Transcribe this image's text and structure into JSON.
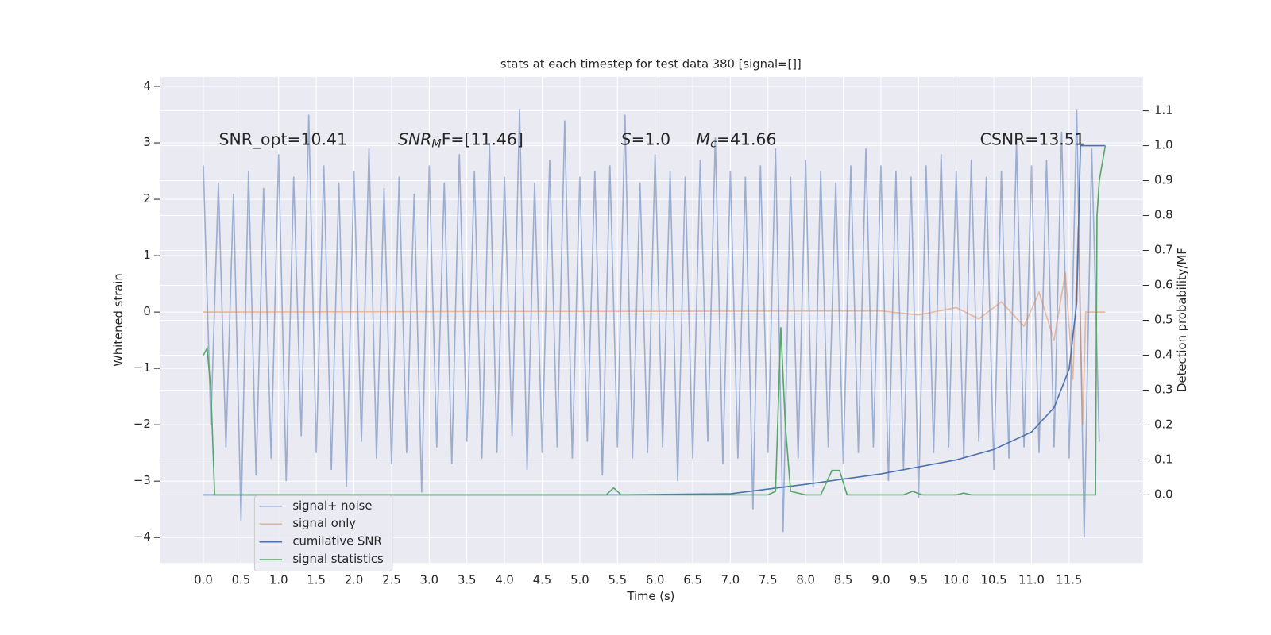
{
  "chart_data": {
    "type": "line",
    "title": "stats at each timestep for test data 380 [signal=[]]",
    "x_label": "Time (s)",
    "y_label": "Whitened strain",
    "y2_label": "Detection probability/MF",
    "xlim": [
      -0.58,
      12.48
    ],
    "ylim": [
      -4.45,
      4.17
    ],
    "y2lim": [
      -0.195,
      1.197
    ],
    "grid": true,
    "legend": "lower left",
    "xticks": [
      {
        "value": 0,
        "label": "0.0"
      },
      {
        "value": 0.5,
        "label": "0.5"
      },
      {
        "value": 1,
        "label": "1.0"
      },
      {
        "value": 1.5,
        "label": "1.5"
      },
      {
        "value": 2,
        "label": "2.0"
      },
      {
        "value": 2.5,
        "label": "2.5"
      },
      {
        "value": 3,
        "label": "3.0"
      },
      {
        "value": 3.5,
        "label": "3.5"
      },
      {
        "value": 4,
        "label": "4.0"
      },
      {
        "value": 4.5,
        "label": "4.5"
      },
      {
        "value": 5,
        "label": "5.0"
      },
      {
        "value": 5.5,
        "label": "5.5"
      },
      {
        "value": 6,
        "label": "6.0"
      },
      {
        "value": 6.5,
        "label": "6.5"
      },
      {
        "value": 7,
        "label": "7.0"
      },
      {
        "value": 7.5,
        "label": "7.5"
      },
      {
        "value": 8,
        "label": "8.0"
      },
      {
        "value": 8.5,
        "label": "8.5"
      },
      {
        "value": 9,
        "label": "9.0"
      },
      {
        "value": 9.5,
        "label": "9.5"
      },
      {
        "value": 10,
        "label": "10.0"
      },
      {
        "value": 10.5,
        "label": "10.5"
      },
      {
        "value": 11,
        "label": "11.0"
      },
      {
        "value": 11.5,
        "label": "11.5"
      }
    ],
    "yticks": [
      {
        "value": -4,
        "label": "−4"
      },
      {
        "value": -3,
        "label": "−3"
      },
      {
        "value": -2,
        "label": "−2"
      },
      {
        "value": -1,
        "label": "−1"
      },
      0,
      1,
      2,
      3,
      4
    ],
    "y2ticks": [
      {
        "value": 0,
        "label": "0.0"
      },
      {
        "value": 0.1,
        "label": "0.1"
      },
      {
        "value": 0.2,
        "label": "0.2"
      },
      {
        "value": 0.3,
        "label": "0.3"
      },
      {
        "value": 0.4,
        "label": "0.4"
      },
      {
        "value": 0.5,
        "label": "0.5"
      },
      {
        "value": 0.6,
        "label": "0.6"
      },
      {
        "value": 0.7,
        "label": "0.7"
      },
      {
        "value": 0.8,
        "label": "0.8"
      },
      {
        "value": 0.9,
        "label": "0.9"
      },
      {
        "value": 1,
        "label": "1.0"
      },
      {
        "value": 1.1,
        "label": "1.1"
      }
    ],
    "annotations": [
      {
        "text": "SNR_opt=10.41"
      },
      {
        "math": "SNR",
        "sub": "M",
        "text": "F=[11.46]"
      },
      {
        "math": "S",
        "text": "=1.0"
      },
      {
        "math": "M",
        "sub": "c",
        "text": "=41.66"
      },
      {
        "text": "CSNR=13.51"
      }
    ],
    "series": [
      {
        "name": "signal+ noise",
        "color": "#4c72b0",
        "opacity": 0.5,
        "axis": "y",
        "x": [
          0,
          0.1,
          0.2,
          0.3,
          0.4,
          0.5,
          0.6,
          0.7,
          0.8,
          0.9,
          1,
          1.1,
          1.2,
          1.3,
          1.4,
          1.5,
          1.6,
          1.7,
          1.8,
          1.9,
          2,
          2.1,
          2.2,
          2.3,
          2.4,
          2.5,
          2.6,
          2.7,
          2.8,
          2.9,
          3,
          3.1,
          3.2,
          3.3,
          3.4,
          3.5,
          3.6,
          3.7,
          3.8,
          3.9,
          4,
          4.1,
          4.2,
          4.3,
          4.4,
          4.5,
          4.6,
          4.7,
          4.8,
          4.9,
          5,
          5.1,
          5.2,
          5.3,
          5.4,
          5.5,
          5.6,
          5.7,
          5.8,
          5.9,
          6,
          6.1,
          6.2,
          6.3,
          6.4,
          6.5,
          6.6,
          6.7,
          6.8,
          6.9,
          7,
          7.1,
          7.2,
          7.3,
          7.4,
          7.5,
          7.6,
          7.7,
          7.8,
          7.9,
          8,
          8.1,
          8.2,
          8.3,
          8.4,
          8.5,
          8.6,
          8.7,
          8.8,
          8.9,
          9,
          9.1,
          9.2,
          9.3,
          9.4,
          9.5,
          9.6,
          9.7,
          9.8,
          9.9,
          10,
          10.1,
          10.2,
          10.3,
          10.4,
          10.5,
          10.6,
          10.7,
          10.8,
          10.9,
          11,
          11.1,
          11.2,
          11.3,
          11.4,
          11.5,
          11.6,
          11.7,
          11.8,
          11.9
        ],
        "values": [
          2.6,
          -2.0,
          2.3,
          -2.4,
          2.1,
          -3.7,
          2.5,
          -2.9,
          2.2,
          -2.6,
          2.8,
          -3.0,
          2.4,
          -2.2,
          3.5,
          -2.5,
          2.6,
          -2.8,
          2.3,
          -3.1,
          2.5,
          -2.3,
          2.9,
          -2.6,
          2.2,
          -2.7,
          2.4,
          -2.5,
          2.1,
          -3.2,
          2.6,
          -2.4,
          2.3,
          -2.7,
          2.8,
          -2.3,
          2.5,
          -2.6,
          3.0,
          -2.5,
          2.4,
          -2.2,
          3.6,
          -2.8,
          2.3,
          -2.5,
          2.7,
          -2.4,
          3.4,
          -2.6,
          2.4,
          -2.3,
          2.5,
          -2.9,
          2.6,
          -2.4,
          3.5,
          -2.6,
          2.3,
          -2.5,
          2.8,
          -2.4,
          2.5,
          -3.0,
          2.4,
          -2.6,
          2.7,
          -2.3,
          3.1,
          -2.7,
          2.5,
          -2.6,
          2.4,
          -3.5,
          2.6,
          -2.5,
          2.9,
          -3.9,
          2.4,
          -2.6,
          2.7,
          -3.1,
          2.5,
          -2.4,
          2.3,
          -2.7,
          2.6,
          -2.5,
          2.9,
          -2.4,
          2.6,
          -3.0,
          2.5,
          -2.8,
          2.4,
          -3.3,
          2.6,
          -2.5,
          2.8,
          -2.4,
          2.5,
          -2.6,
          2.7,
          -2.3,
          2.4,
          -2.8,
          2.5,
          -2.6,
          3.0,
          -2.4,
          2.6,
          -2.5,
          2.7,
          -2.4,
          3.2,
          -2.6,
          3.6,
          -4.0,
          2.9,
          -2.3
        ]
      },
      {
        "name": "signal only",
        "color": "#dd8452",
        "opacity": 0.5,
        "axis": "y",
        "x": [
          0,
          9.0,
          9.5,
          10.0,
          10.3,
          10.6,
          10.9,
          11.1,
          11.3,
          11.45,
          11.55,
          11.62,
          11.68,
          11.72,
          11.98
        ],
        "values": [
          0,
          0.02,
          -0.05,
          0.08,
          -0.12,
          0.18,
          -0.25,
          0.35,
          -0.5,
          0.7,
          -1.2,
          1.5,
          -2.0,
          0,
          0
        ]
      },
      {
        "name": "cumilative SNR",
        "color": "#4c72b0",
        "opacity": 1,
        "axis": "y2",
        "x": [
          0,
          5.5,
          7.0,
          8.0,
          9.0,
          10.0,
          10.5,
          11.0,
          11.3,
          11.5,
          11.6,
          11.65,
          11.98
        ],
        "values": [
          0,
          0,
          0.003,
          0.03,
          0.06,
          0.1,
          0.13,
          0.18,
          0.25,
          0.36,
          0.55,
          1.0,
          1.0
        ]
      },
      {
        "name": "signal statistics",
        "color": "#55a868",
        "opacity": 1,
        "axis": "y2",
        "x": [
          0,
          0.05,
          0.1,
          0.15,
          0.2,
          0.3,
          5.35,
          5.45,
          5.55,
          5.6,
          7.5,
          7.6,
          7.67,
          7.73,
          7.8,
          8.0,
          8.2,
          8.35,
          8.45,
          8.55,
          9.3,
          9.42,
          9.55,
          10.0,
          10.1,
          10.2,
          11.85,
          11.87,
          11.9,
          11.98
        ],
        "values": [
          0.4,
          0.42,
          0.3,
          0,
          0,
          0,
          0,
          0.02,
          0,
          0,
          0,
          0.01,
          0.48,
          0.2,
          0.01,
          0,
          0,
          0.07,
          0.07,
          0,
          0,
          0.01,
          0,
          0,
          0.005,
          0,
          0,
          0.8,
          0.9,
          1.0
        ]
      }
    ]
  }
}
